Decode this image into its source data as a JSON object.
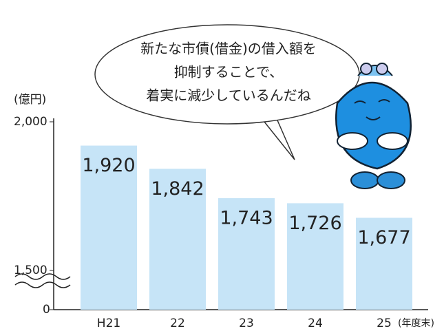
{
  "chart_data": {
    "type": "bar",
    "speech_bubble": [
      "新たな市債(借金)の借入額を",
      "抑制することで、",
      "着実に減少しているんだね"
    ],
    "y_label": "(億円)",
    "x_label": "(年度末)",
    "categories": [
      "H21",
      "22",
      "23",
      "24",
      "25"
    ],
    "values": [
      1920,
      1842,
      1743,
      1726,
      1677
    ],
    "value_labels": [
      "1,920",
      "1,842",
      "1,743",
      "1,726",
      "1,677"
    ],
    "color": "#c6e4f7",
    "ylim": [
      1500,
      2000
    ],
    "yticks": [
      0,
      {
        "value": 1500,
        "label": "1,500"
      },
      {
        "value": 2000,
        "label": "2,000"
      }
    ],
    "axis_break": true
  }
}
